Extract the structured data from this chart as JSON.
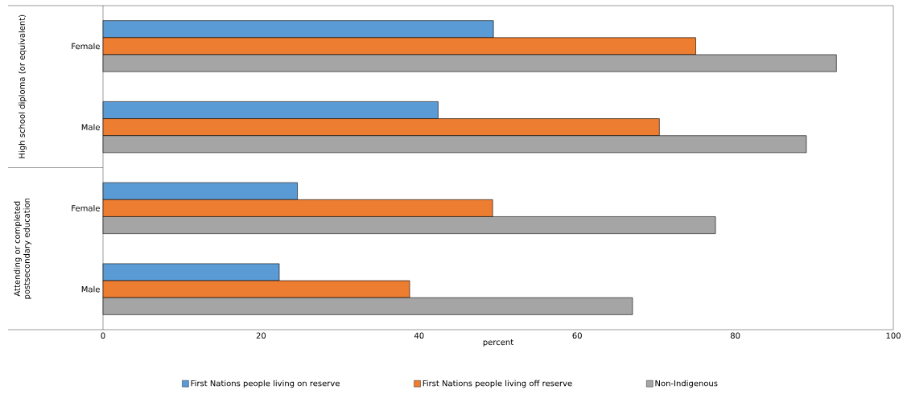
{
  "chart_data": {
    "type": "bar",
    "orientation": "horizontal",
    "xlabel": "percent",
    "categories": [
      "Female",
      "Male",
      "Female",
      "Male"
    ],
    "annotations": [
      "High school diploma (or equivalent)",
      "Attending or completed postsecondary education"
    ],
    "series": [
      {
        "name": "First Nations people living on reserve",
        "color": "#5b9bd5",
        "values": [
          49.4,
          42.4,
          24.6,
          22.3
        ]
      },
      {
        "name": "First Nations people living off reserve",
        "color": "#ed7d31",
        "values": [
          75.0,
          70.4,
          49.3,
          38.8
        ]
      },
      {
        "name": "Non-Indigenous",
        "color": "#a5a5a5",
        "values": [
          92.8,
          89.0,
          77.5,
          67.0
        ]
      }
    ],
    "xlim": [
      0,
      100
    ],
    "xticks": [
      0,
      20,
      40,
      60,
      80,
      100
    ],
    "grid": false,
    "legend": "bottom"
  }
}
